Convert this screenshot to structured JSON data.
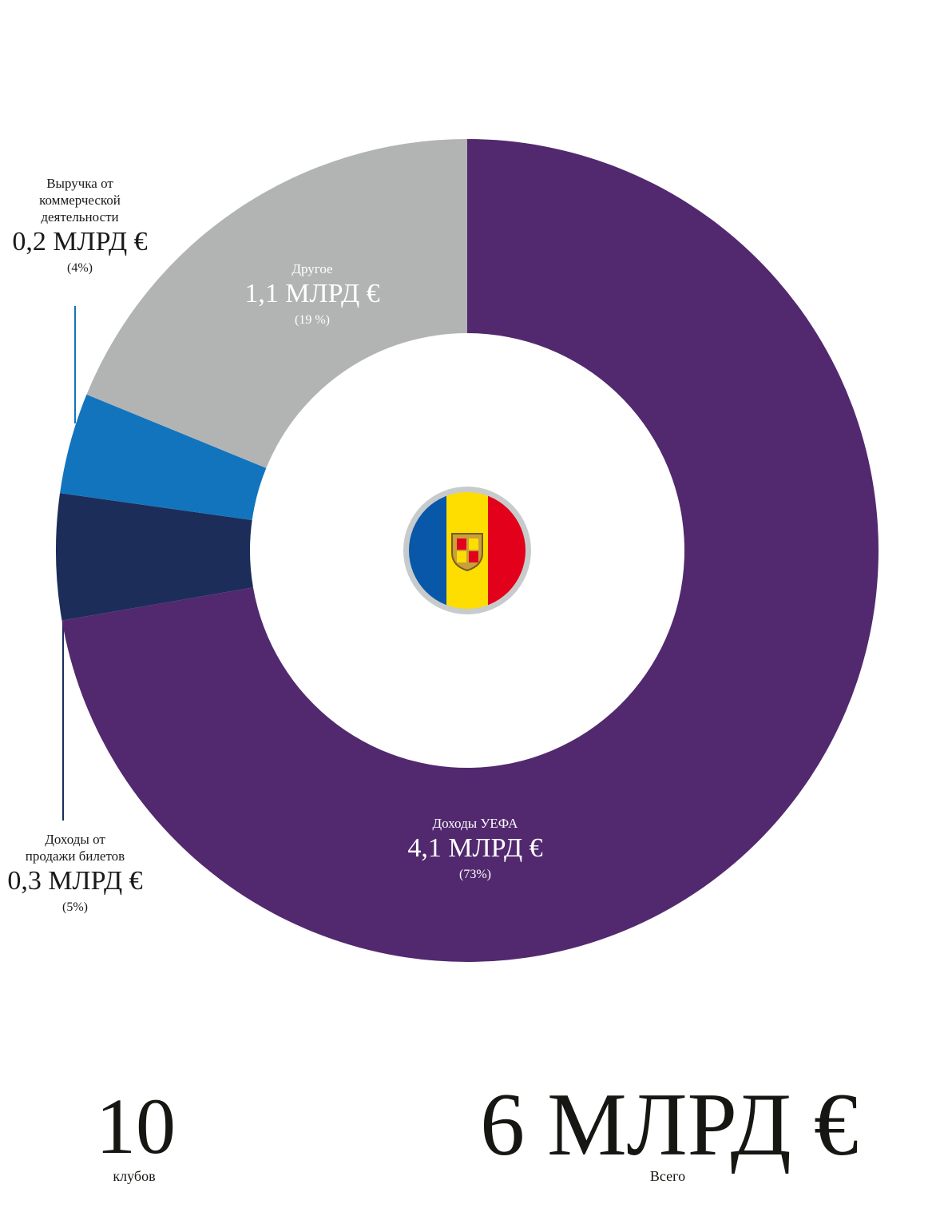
{
  "chart_data": {
    "type": "donut",
    "categories": [
      "Доходы УЕФА",
      "Доходы от\nпродажи билетов",
      "Выручка от\nкоммерческой\nдеятельности",
      "Другое"
    ],
    "values": [
      73,
      5,
      4,
      19
    ],
    "value_labels": [
      "(73%)",
      "(5%)",
      "(4%)",
      "(19 %)"
    ],
    "amount_labels": [
      "4,1 МЛРД €",
      "0,3 МЛРД €",
      "0,2 МЛРД €",
      "1,1 МЛРД €"
    ],
    "colors": [
      "#52296f",
      "#1c2d5a",
      "#1274bd",
      "#b2b4b4"
    ]
  },
  "summary": {
    "clubs": 10,
    "clubs_label": "клубов",
    "total": "6 МЛРД €",
    "total_label": "Всего"
  }
}
